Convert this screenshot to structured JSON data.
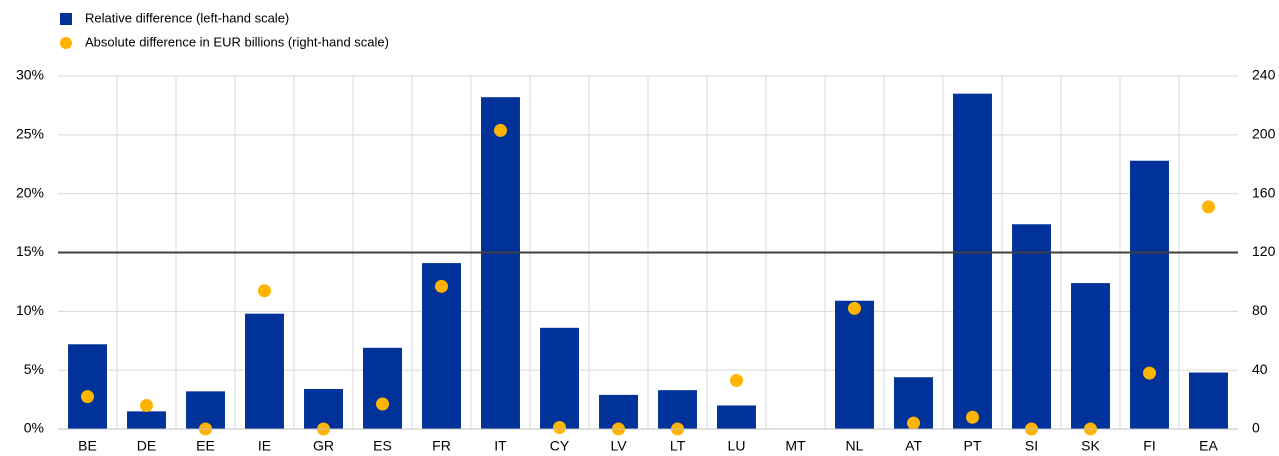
{
  "chart_data": {
    "type": "bar",
    "categories": [
      "BE",
      "DE",
      "EE",
      "IE",
      "GR",
      "ES",
      "FR",
      "IT",
      "CY",
      "LV",
      "LT",
      "LU",
      "MT",
      "NL",
      "AT",
      "PT",
      "SI",
      "SK",
      "FI",
      "EA"
    ],
    "series": [
      {
        "name": "Relative difference (left-hand scale)",
        "type": "bar",
        "color": "#003299",
        "values": [
          7.2,
          1.5,
          3.2,
          9.8,
          3.4,
          6.9,
          14.1,
          28.2,
          8.6,
          2.9,
          3.3,
          2.0,
          null,
          10.9,
          4.4,
          28.5,
          17.4,
          12.4,
          22.8,
          4.8
        ]
      },
      {
        "name": "Absolute difference in EUR billions (right-hand scale)",
        "type": "scatter",
        "axis": "y2",
        "color": "#FFB400",
        "values": [
          22,
          16,
          0,
          94,
          0,
          17,
          97,
          203,
          1,
          0,
          0,
          33,
          null,
          82,
          4,
          8,
          0,
          0,
          38,
          151
        ]
      }
    ],
    "ylim": [
      0,
      30
    ],
    "yticks": [
      {
        "value": 0,
        "label": "0%"
      },
      {
        "value": 5,
        "label": "5%"
      },
      {
        "value": 10,
        "label": "10%"
      },
      {
        "value": 15,
        "label": "15%"
      },
      {
        "value": 20,
        "label": "20%"
      },
      {
        "value": 25,
        "label": "25%"
      },
      {
        "value": 30,
        "label": "30%"
      }
    ],
    "y2lim": [
      0,
      240
    ],
    "y2ticks": [
      0,
      40,
      80,
      120,
      160,
      200,
      240
    ],
    "reference_line": 15,
    "grid": true,
    "legend": "top-left"
  }
}
